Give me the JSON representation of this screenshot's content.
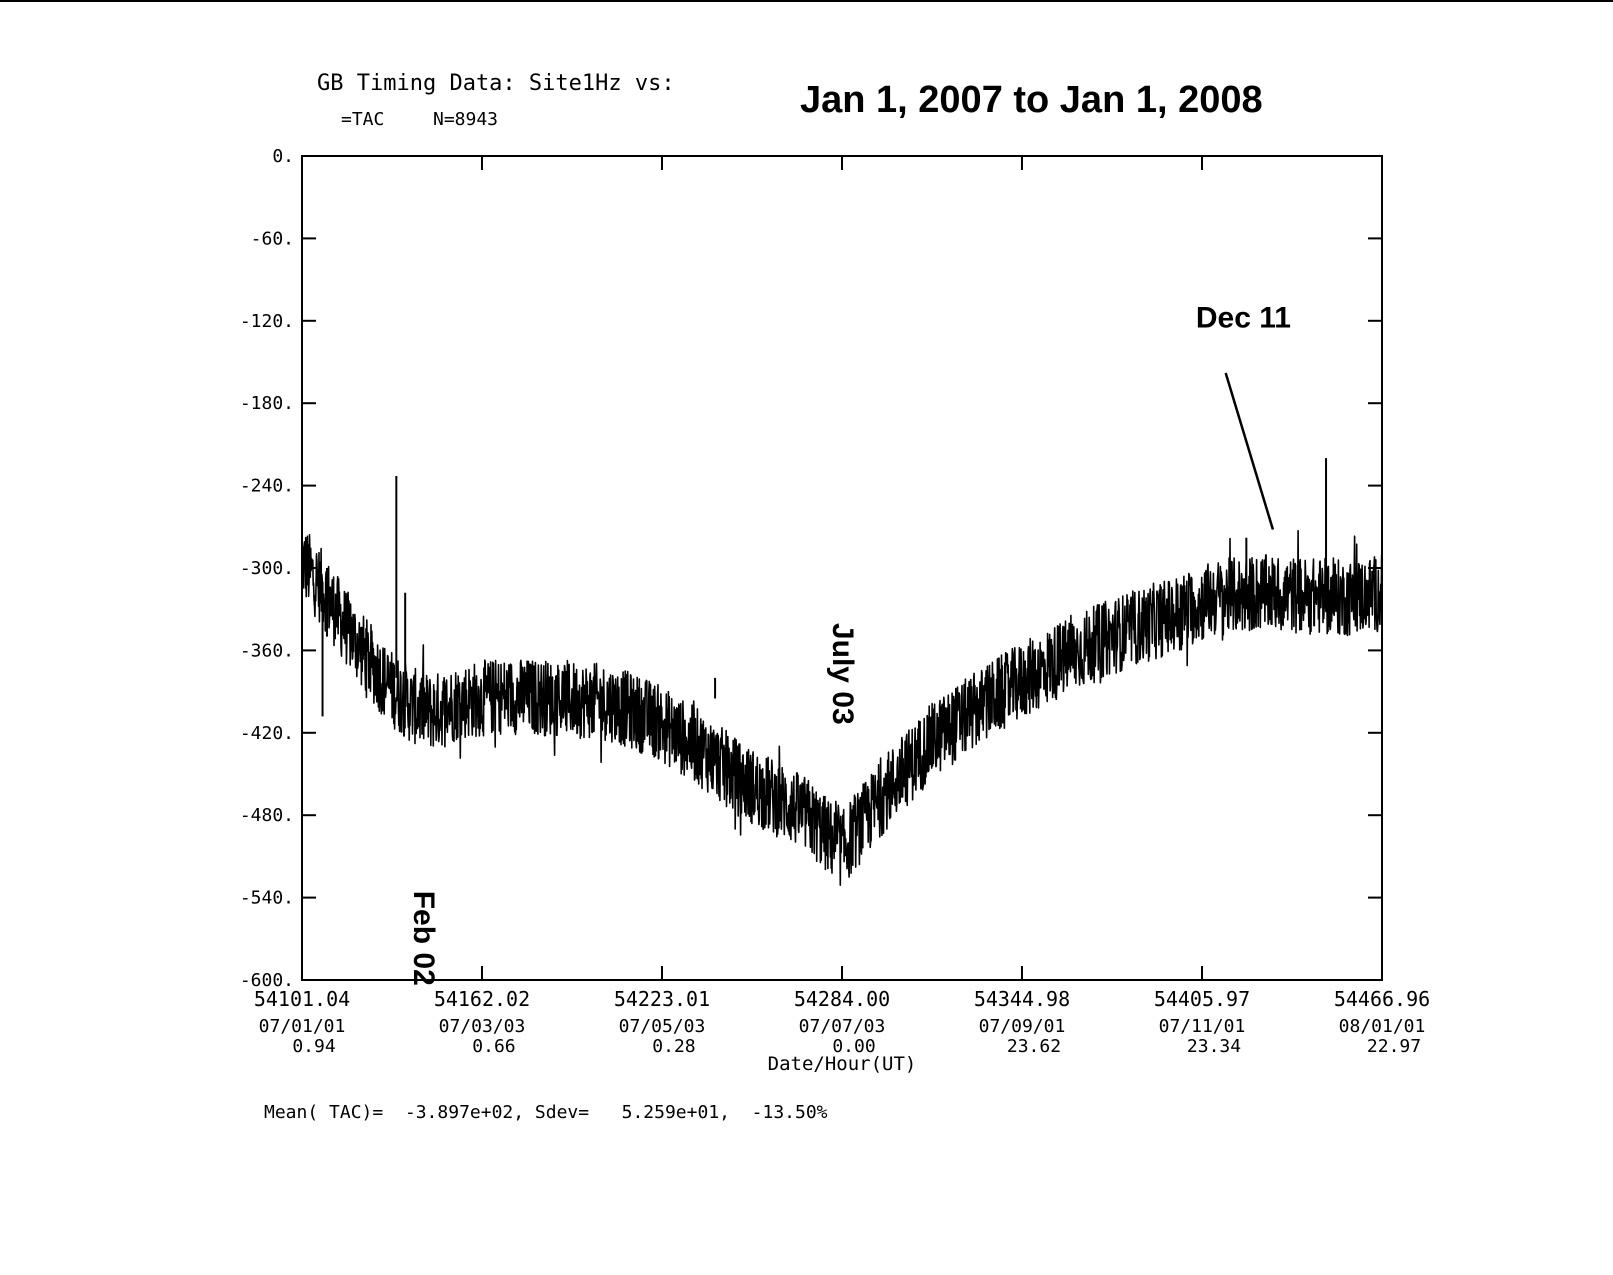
{
  "header": {
    "title_line1": "GB Timing Data: Site1Hz vs:",
    "title_line2": "=TAC",
    "count_label": "N=8943",
    "date_range": "Jan 1, 2007 to Jan 1, 2008"
  },
  "footer": {
    "stats": "Mean( TAC)=  -3.897e+02, Sdev=   5.259e+01,  -13.50%"
  },
  "chart_data": {
    "type": "line",
    "title": "GB Timing Data: Site1Hz vs:",
    "xlabel": "Date/Hour(UT)",
    "ylabel": "",
    "xlim": [
      54101.04,
      54466.96
    ],
    "ylim": [
      -600,
      0
    ],
    "grid": false,
    "y_ticks": [
      0,
      -60,
      -120,
      -180,
      -240,
      -300,
      -360,
      -420,
      -480,
      -540,
      -600
    ],
    "y_tick_labels": [
      "0.",
      "-60.",
      "-120.",
      "-180.",
      "-240.",
      "-300.",
      "-360.",
      "-420.",
      "-480.",
      "-540.",
      "-600."
    ],
    "x_ticks": [
      {
        "mjd": 54101.04,
        "mjd_label": "54101.04",
        "date": "07/01/01",
        "hour": "0.94"
      },
      {
        "mjd": 54162.02,
        "mjd_label": "54162.02",
        "date": "07/03/03",
        "hour": "0.66"
      },
      {
        "mjd": 54223.01,
        "mjd_label": "54223.01",
        "date": "07/05/03",
        "hour": "0.28"
      },
      {
        "mjd": 54284.0,
        "mjd_label": "54284.00",
        "date": "07/07/03",
        "hour": "0.00"
      },
      {
        "mjd": 54344.98,
        "mjd_label": "54344.98",
        "date": "07/09/01",
        "hour": "23.62"
      },
      {
        "mjd": 54405.97,
        "mjd_label": "54405.97",
        "date": "07/11/01",
        "hour": "23.34"
      },
      {
        "mjd": 54466.96,
        "mjd_label": "54466.96",
        "date": "08/01/01",
        "hour": "22.97"
      }
    ],
    "series": [
      {
        "trend": {
          "x": [
            54101.04,
            54108,
            54115,
            54122,
            54130,
            54138,
            54145,
            54155,
            54170,
            54190,
            54205,
            54220,
            54235,
            54250,
            54262,
            54272,
            54280,
            54284,
            54290,
            54300,
            54315,
            54335,
            54355,
            54375,
            54395,
            54410,
            54425,
            54440,
            54455,
            54466.96
          ],
          "y": [
            -295,
            -315,
            -340,
            -362,
            -385,
            -400,
            -405,
            -397,
            -393,
            -395,
            -398,
            -410,
            -430,
            -455,
            -468,
            -480,
            -497,
            -505,
            -488,
            -460,
            -425,
            -395,
            -370,
            -350,
            -335,
            -322,
            -318,
            -320,
            -322,
            -318
          ]
        },
        "noise_amplitude": 28,
        "spikes": [
          {
            "x": 54108,
            "y_top": -310,
            "y_bottom": -408
          },
          {
            "x": 54109.5,
            "y_top": -300,
            "y_bottom": -350
          },
          {
            "x": 54133,
            "y_top": -233,
            "y_bottom": -380
          },
          {
            "x": 54136,
            "y_top": -318,
            "y_bottom": -395
          },
          {
            "x": 54241,
            "y_top": -380,
            "y_bottom": -395
          },
          {
            "x": 54421,
            "y_top": -278,
            "y_bottom": -330
          },
          {
            "x": 54448,
            "y_top": -220,
            "y_bottom": -330
          }
        ]
      }
    ],
    "annotations": [
      {
        "text": "Feb 02",
        "x": 54139,
        "y": -535,
        "rotate": 90
      },
      {
        "text": "July 03",
        "x": 54281,
        "y": -340,
        "rotate": 90
      },
      {
        "text": "Dec 11",
        "x": 54420,
        "y": -125,
        "rotate": 0
      }
    ],
    "leader_line": {
      "x1": 54414,
      "y1": -158,
      "x2": 54430,
      "y2": -272
    }
  }
}
